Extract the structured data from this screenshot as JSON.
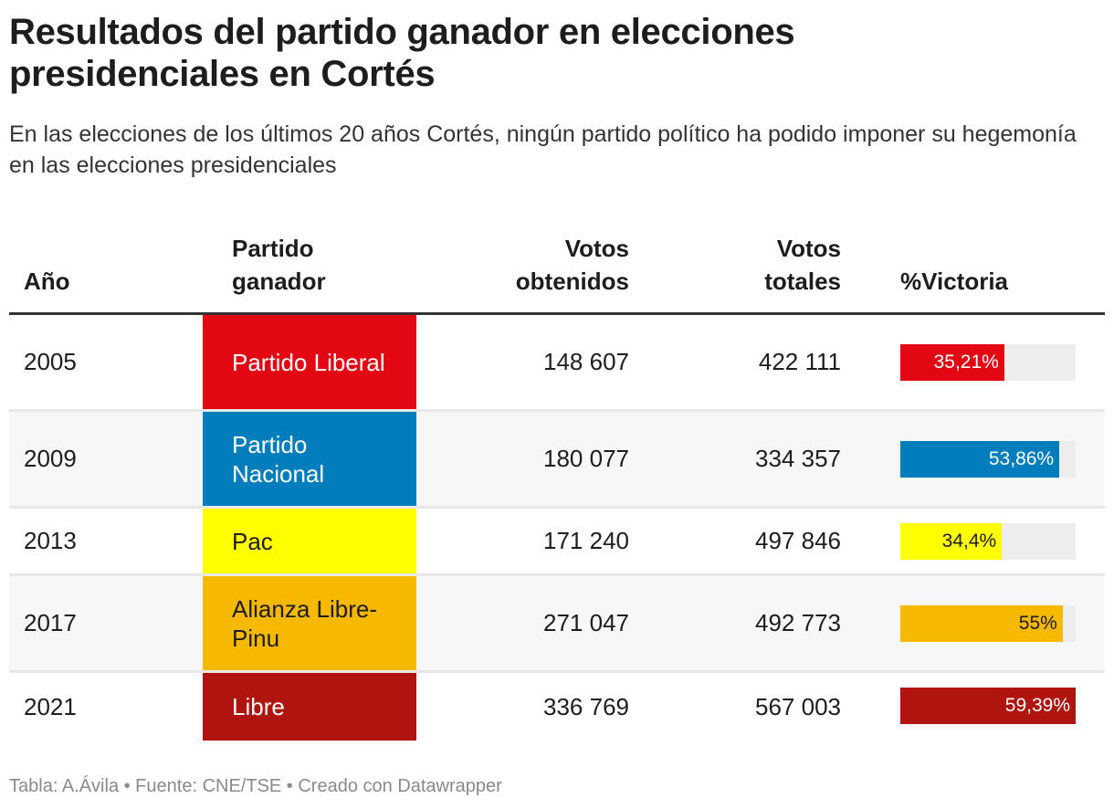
{
  "title": "Resultados del partido ganador en elecciones presidenciales en Cortés",
  "subtitle": "En las elecciones de los últimos 20 años Cortés, ningún partido político ha podido imponer su hegemonía en las elecciones presidenciales",
  "footer": "Tabla: A.Ávila • Fuente: CNE/TSE • Creado con Datawrapper",
  "chart_data": {
    "type": "table",
    "columns": [
      "Año",
      "Partido ganador",
      "Votos obtenidos",
      "Votos totales",
      "%Victoria"
    ],
    "bar_max": 59.39,
    "rows": [
      {
        "year": "2005",
        "party": "Partido Liberal",
        "votes": "148 607",
        "total": "422 111",
        "pct": 35.21,
        "pct_label": "35,21%",
        "color": "#e30613",
        "text_color": "#ffffff"
      },
      {
        "year": "2009",
        "party": "Partido Nacional",
        "votes": "180 077",
        "total": "334 357",
        "pct": 53.86,
        "pct_label": "53,86%",
        "color": "#007dbc",
        "text_color": "#ffffff"
      },
      {
        "year": "2013",
        "party": "Pac",
        "votes": "171 240",
        "total": "497 846",
        "pct": 34.4,
        "pct_label": "34,4%",
        "color": "#ffff00",
        "text_color": "#1d1d1d"
      },
      {
        "year": "2017",
        "party": "Alianza Libre-Pinu",
        "votes": "271 047",
        "total": "492 773",
        "pct": 55,
        "pct_label": "55%",
        "color": "#f7b800",
        "text_color": "#1d1d1d"
      },
      {
        "year": "2021",
        "party": "Libre",
        "votes": "336 769",
        "total": "567 003",
        "pct": 59.39,
        "pct_label": "59,39%",
        "color": "#b0140e",
        "text_color": "#ffffff"
      }
    ]
  }
}
